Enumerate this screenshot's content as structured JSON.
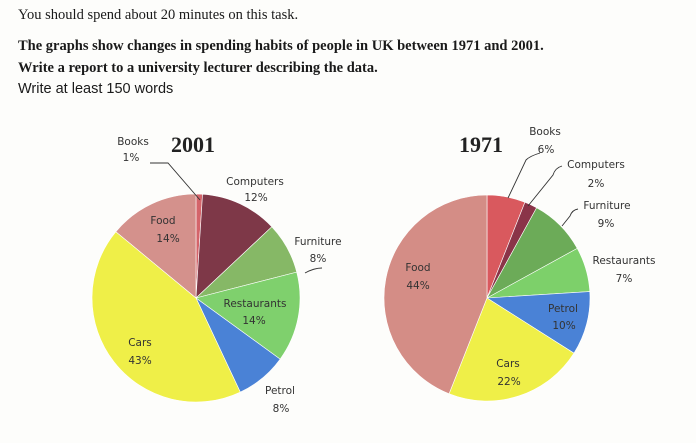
{
  "instructions": {
    "line1": "You should spend about 20 minutes on this task.",
    "line2": "The graphs show changes in spending habits of people in UK between 1971 and 2001.",
    "line3": "Write a report to a university lecturer describing the data.",
    "line4": "Write at least 150 words"
  },
  "chart_data": [
    {
      "type": "pie",
      "title": "2001",
      "slices": [
        {
          "label": "Books",
          "value": 1,
          "text": "1%",
          "color": "#d4646a"
        },
        {
          "label": "Computers",
          "value": 12,
          "text": "12%",
          "color": "#7e3848"
        },
        {
          "label": "Furniture",
          "value": 8,
          "text": "8%",
          "color": "#86b866"
        },
        {
          "label": "Restaurants",
          "value": 14,
          "text": "14%",
          "color": "#7fd06d"
        },
        {
          "label": "Petrol",
          "value": 8,
          "text": "8%",
          "color": "#4a82d6"
        },
        {
          "label": "Cars",
          "value": 43,
          "text": "43%",
          "color": "#efef48"
        },
        {
          "label": "Food",
          "value": 14,
          "text": "14%",
          "color": "#d4918c"
        }
      ]
    },
    {
      "type": "pie",
      "title": "1971",
      "slices": [
        {
          "label": "Books",
          "value": 6,
          "text": "6%",
          "color": "#d9595e"
        },
        {
          "label": "Computers",
          "value": 2,
          "text": "2%",
          "color": "#8a3448"
        },
        {
          "label": "Furniture",
          "value": 9,
          "text": "9%",
          "color": "#6cab58"
        },
        {
          "label": "Restaurants",
          "value": 7,
          "text": "7%",
          "color": "#7dd06a"
        },
        {
          "label": "Petrol",
          "value": 10,
          "text": "10%",
          "color": "#4a82d6"
        },
        {
          "label": "Cars",
          "value": 22,
          "text": "22%",
          "color": "#efef48"
        },
        {
          "label": "Food",
          "value": 44,
          "text": "44%",
          "color": "#d48d86"
        }
      ]
    }
  ]
}
